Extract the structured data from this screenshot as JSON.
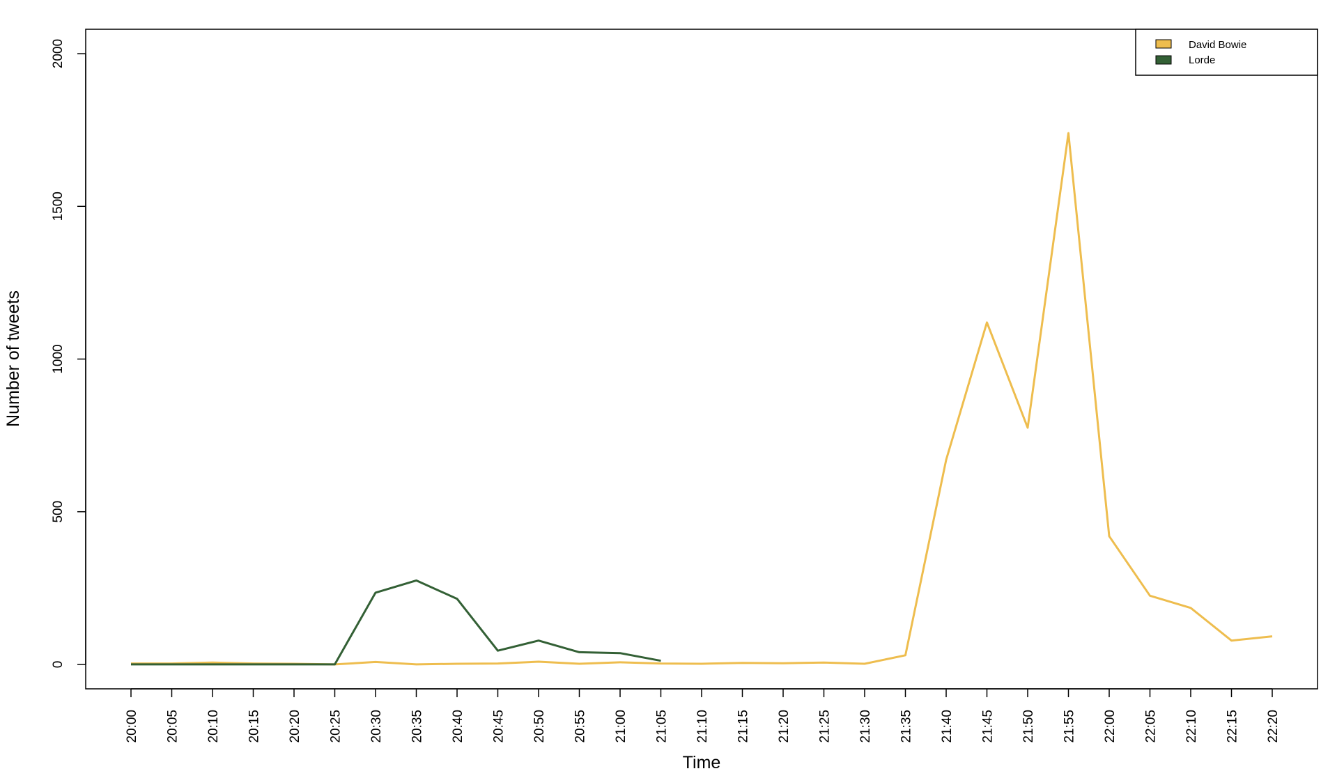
{
  "chart_data": {
    "type": "line",
    "title": "",
    "xlabel": "Time",
    "ylabel": "Number of tweets",
    "ylim": [
      -80,
      2080
    ],
    "yticks": [
      0,
      500,
      1000,
      1500,
      2000
    ],
    "x": [
      "20:00",
      "20:05",
      "20:10",
      "20:15",
      "20:20",
      "20:25",
      "20:30",
      "20:35",
      "20:40",
      "20:45",
      "20:50",
      "20:55",
      "21:00",
      "21:05",
      "21:10",
      "21:15",
      "21:20",
      "21:25",
      "21:30",
      "21:35",
      "21:40",
      "21:45",
      "21:50",
      "21:55",
      "22:00",
      "22:05",
      "22:10",
      "22:15",
      "22:20"
    ],
    "grid": false,
    "legend_position": "top-right",
    "series": [
      {
        "name": "David Bowie",
        "color": "#EEBD4E",
        "values": [
          3,
          3,
          6,
          3,
          2,
          0,
          8,
          0,
          2,
          3,
          9,
          2,
          7,
          3,
          2,
          5,
          4,
          6,
          2,
          30,
          670,
          1120,
          775,
          1740,
          420,
          225,
          185,
          78,
          92
        ]
      },
      {
        "name": "Lorde",
        "color": "#336035",
        "values": [
          0,
          0,
          0,
          0,
          0,
          0,
          235,
          275,
          215,
          45,
          78,
          40,
          37,
          12,
          null,
          null,
          null,
          null,
          null,
          null,
          null,
          null,
          null,
          null,
          null,
          null,
          null,
          null,
          null
        ]
      }
    ]
  }
}
